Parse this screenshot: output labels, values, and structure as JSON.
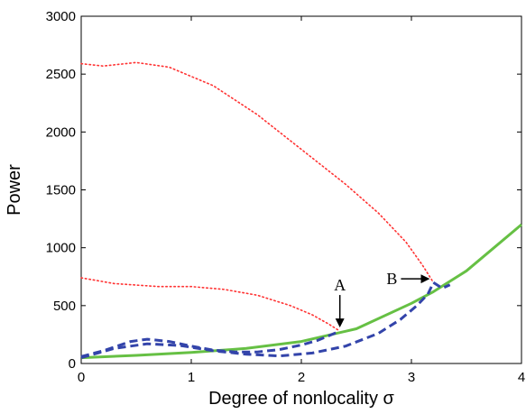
{
  "chart_data": {
    "type": "line",
    "xlabel": "Degree of nonlocality σ",
    "ylabel": "Power",
    "xlim": [
      0,
      4
    ],
    "ylim": [
      0,
      3000
    ],
    "x_ticks": [
      "0",
      "1",
      "2",
      "3",
      "4"
    ],
    "y_ticks": [
      "0",
      "500",
      "1000",
      "1500",
      "2000",
      "2500",
      "3000"
    ],
    "grid": false,
    "series": [
      {
        "style": "solid",
        "color": "#66c044",
        "points": [
          [
            0,
            50
          ],
          [
            0.5,
            70
          ],
          [
            1,
            95
          ],
          [
            1.5,
            130
          ],
          [
            2,
            190
          ],
          [
            2.5,
            300
          ],
          [
            3,
            520
          ],
          [
            3.2,
            620
          ],
          [
            3.5,
            800
          ],
          [
            4,
            1200
          ]
        ]
      },
      {
        "style": "dotted",
        "color": "#ff3333",
        "points": [
          [
            0,
            2590
          ],
          [
            0.2,
            2570
          ],
          [
            0.5,
            2600
          ],
          [
            0.8,
            2560
          ],
          [
            1.2,
            2400
          ],
          [
            1.6,
            2150
          ],
          [
            2,
            1850
          ],
          [
            2.4,
            1550
          ],
          [
            2.7,
            1300
          ],
          [
            2.95,
            1050
          ],
          [
            3.1,
            850
          ],
          [
            3.2,
            700
          ]
        ]
      },
      {
        "style": "dotted",
        "color": "#ff3333",
        "points": [
          [
            0,
            740
          ],
          [
            0.3,
            690
          ],
          [
            0.7,
            665
          ],
          [
            1,
            665
          ],
          [
            1.3,
            640
          ],
          [
            1.6,
            590
          ],
          [
            1.9,
            500
          ],
          [
            2.1,
            420
          ],
          [
            2.25,
            340
          ],
          [
            2.35,
            280
          ]
        ]
      },
      {
        "style": "dashed",
        "color": "#3344aa",
        "points": [
          [
            0,
            60
          ],
          [
            0.2,
            110
          ],
          [
            0.45,
            190
          ],
          [
            0.6,
            210
          ],
          [
            0.8,
            190
          ],
          [
            1.0,
            150
          ],
          [
            1.2,
            115
          ],
          [
            1.4,
            100
          ],
          [
            1.6,
            100
          ],
          [
            1.8,
            120
          ],
          [
            2.0,
            160
          ],
          [
            2.15,
            200
          ],
          [
            2.25,
            240
          ],
          [
            2.35,
            280
          ]
        ]
      },
      {
        "style": "dashed",
        "color": "#3344aa",
        "points": [
          [
            0,
            50
          ],
          [
            0.3,
            130
          ],
          [
            0.6,
            170
          ],
          [
            0.9,
            155
          ],
          [
            1.2,
            110
          ],
          [
            1.5,
            80
          ],
          [
            1.8,
            65
          ],
          [
            2.1,
            90
          ],
          [
            2.4,
            150
          ],
          [
            2.7,
            260
          ],
          [
            2.9,
            380
          ],
          [
            3.05,
            500
          ],
          [
            3.15,
            600
          ],
          [
            3.2,
            700
          ]
        ]
      },
      {
        "style": "dashed",
        "color": "#3344aa",
        "points": [
          [
            3.2,
            700
          ],
          [
            3.28,
            650
          ],
          [
            3.35,
            680
          ]
        ]
      }
    ],
    "annotations": [
      {
        "text": "A",
        "x": 2.35,
        "y": 280,
        "arrow": "down"
      },
      {
        "text": "B",
        "x": 3.2,
        "y": 700,
        "arrow": "right"
      }
    ]
  }
}
